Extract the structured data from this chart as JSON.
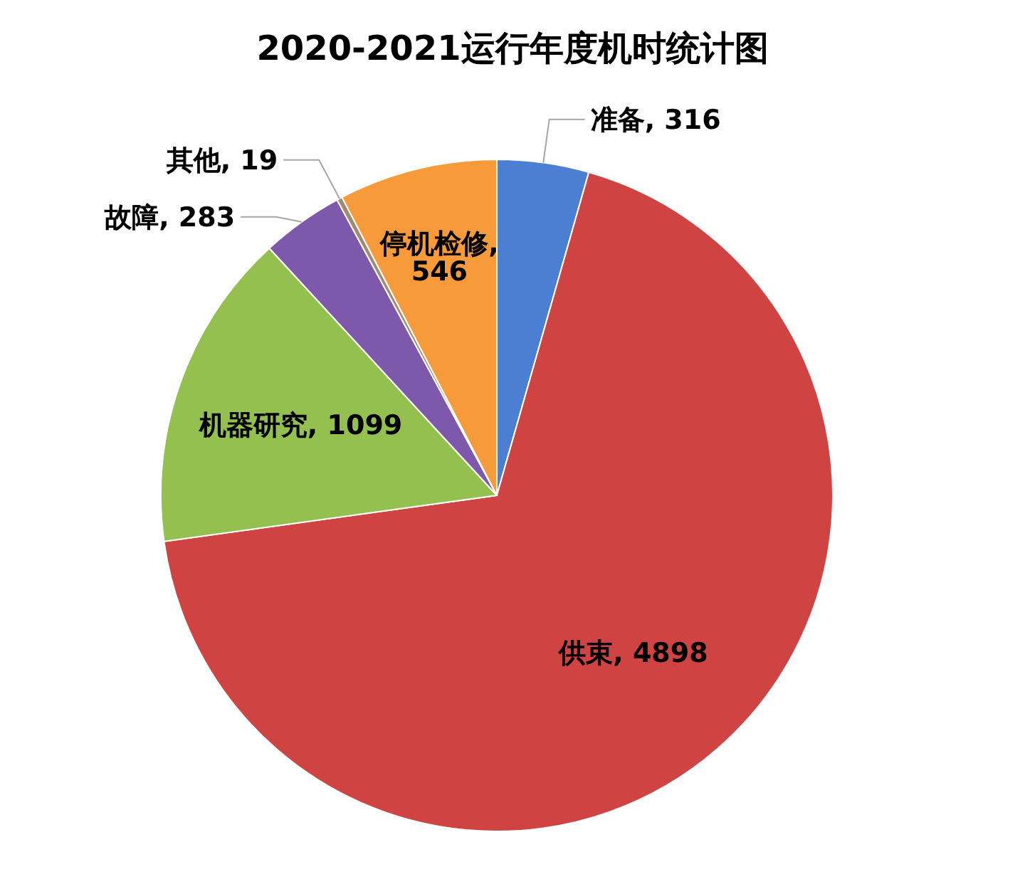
{
  "chart_data": {
    "type": "pie",
    "title": "2020-2021运行年度机时统计图",
    "categories": [
      "准备",
      "供束",
      "机器研究",
      "故障",
      "其他",
      "停机检修"
    ],
    "values": [
      316,
      4898,
      1099,
      283,
      19,
      546
    ],
    "colors": [
      "#4a7fd4",
      "#d04343",
      "#94c04f",
      "#7d58ab",
      "#a08a70",
      "#f79a3a"
    ],
    "value_labels": [
      ", 316",
      ", 4898",
      ", 1099",
      ", 283",
      ", 19",
      ", 546"
    ]
  }
}
